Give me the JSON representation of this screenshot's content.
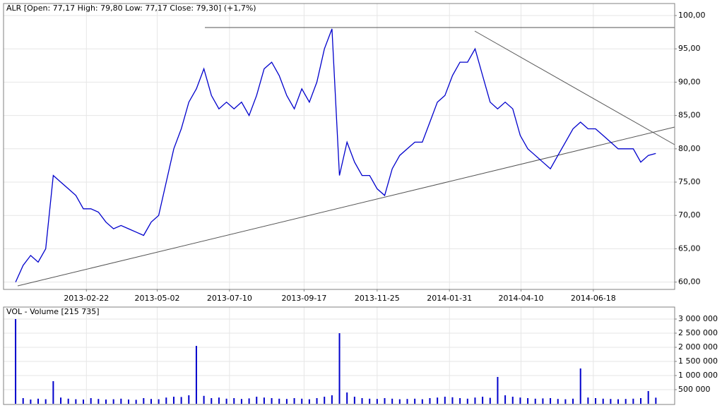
{
  "chart_data": [
    {
      "type": "line",
      "title": "ALR [Open: 77,17  High: 79,80  Low: 77,17  Close: 79,30] (+1,7%)",
      "color": "#0000cc",
      "grid": true,
      "values": [
        60,
        62.5,
        64,
        63,
        65,
        76,
        75,
        74,
        73,
        71,
        71,
        70.5,
        69,
        68,
        68.5,
        68,
        67.5,
        67,
        69,
        70,
        75,
        80,
        83,
        87,
        89,
        92,
        88,
        86,
        87,
        86,
        87,
        85,
        88,
        92,
        93,
        91,
        88,
        86,
        89,
        87,
        90,
        95,
        98,
        76,
        81,
        78,
        76,
        76,
        74,
        73,
        77,
        79,
        80,
        81,
        81,
        84,
        87,
        88,
        91,
        93,
        93,
        95,
        91,
        87,
        86,
        87,
        86,
        82,
        80,
        79,
        78,
        77,
        79,
        81,
        83,
        84,
        83,
        83,
        82,
        81,
        80,
        80,
        80,
        78,
        79,
        79.3
      ],
      "xlim": [
        -1.6,
        87.5
      ],
      "xticks": [
        {
          "value": 9.4,
          "label": "2013-02-22"
        },
        {
          "value": 18.8,
          "label": "2013-05-02"
        },
        {
          "value": 28.4,
          "label": "2013-07-10"
        },
        {
          "value": 38.3,
          "label": "2013-09-17"
        },
        {
          "value": 48.0,
          "label": "2013-11-25"
        },
        {
          "value": 57.6,
          "label": "2014-01-31"
        },
        {
          "value": 67.1,
          "label": "2014-04-10"
        },
        {
          "value": 76.7,
          "label": "2014-06-18"
        }
      ],
      "ylim": [
        58.9,
        101.8
      ],
      "yticks": [
        {
          "value": 60,
          "label": "60,00"
        },
        {
          "value": 65,
          "label": "65,00"
        },
        {
          "value": 70,
          "label": "70,00"
        },
        {
          "value": 75,
          "label": "75,00"
        },
        {
          "value": 80,
          "label": "80,00"
        },
        {
          "value": 85,
          "label": "85,00"
        },
        {
          "value": 90,
          "label": "90,00"
        },
        {
          "value": 95,
          "label": "95,00"
        },
        {
          "value": 100,
          "label": "100,00"
        }
      ]
    },
    {
      "type": "bar",
      "title": "VOL - Volume [215 735]",
      "color": "#0000cc",
      "grid": true,
      "values": [
        3000000,
        200000,
        150000,
        180000,
        160000,
        800000,
        220000,
        180000,
        160000,
        150000,
        200000,
        170000,
        150000,
        160000,
        180000,
        150000,
        140000,
        200000,
        170000,
        160000,
        220000,
        250000,
        240000,
        300000,
        2050000,
        280000,
        200000,
        220000,
        180000,
        200000,
        170000,
        190000,
        250000,
        220000,
        200000,
        180000,
        170000,
        200000,
        180000,
        160000,
        200000,
        250000,
        300000,
        2500000,
        400000,
        250000,
        200000,
        180000,
        170000,
        200000,
        180000,
        160000,
        170000,
        180000,
        160000,
        200000,
        220000,
        250000,
        230000,
        200000,
        180000,
        220000,
        250000,
        210000,
        950000,
        300000,
        250000,
        220000,
        200000,
        180000,
        190000,
        200000,
        170000,
        160000,
        180000,
        1250000,
        220000,
        200000,
        180000,
        170000,
        160000,
        170000,
        180000,
        200000,
        450000,
        215735
      ],
      "xlim": [
        -1.6,
        87.5
      ],
      "ylim": [
        -25000,
        3425000
      ],
      "yticks": [
        {
          "value": 500000,
          "label": "500 000"
        },
        {
          "value": 1000000,
          "label": "1 000 000"
        },
        {
          "value": 1500000,
          "label": "1 500 000"
        },
        {
          "value": 2000000,
          "label": "2 000 000"
        },
        {
          "value": 2500000,
          "label": "2 500 000"
        },
        {
          "value": 3000000,
          "label": "3 000 000"
        }
      ]
    }
  ]
}
